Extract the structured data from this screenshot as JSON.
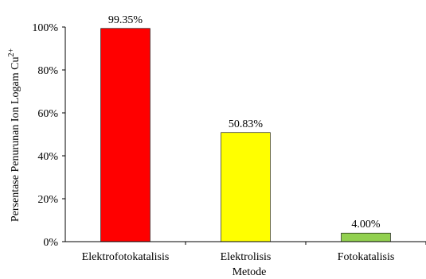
{
  "chart_data": {
    "type": "bar",
    "categories": [
      "Elektrofotokatalisis",
      "Elektrolisis",
      "Fotokatalisis"
    ],
    "values": [
      99.35,
      50.83,
      4.0
    ],
    "data_labels": [
      "99.35%",
      "50.83%",
      "4.00%"
    ],
    "colors": [
      "#ff0000",
      "#ffff00",
      "#92d050"
    ],
    "xlabel": "Metode",
    "ylabel": "Persentase Penurunan Ion Logam Cu",
    "ylabel_superscript": "2+",
    "ylim": [
      0,
      100
    ],
    "yticks": [
      0,
      20,
      40,
      60,
      80,
      100
    ],
    "ytick_labels": [
      "0%",
      "20%",
      "40%",
      "60%",
      "80%",
      "100%"
    ],
    "grid": false,
    "legend": "none"
  }
}
